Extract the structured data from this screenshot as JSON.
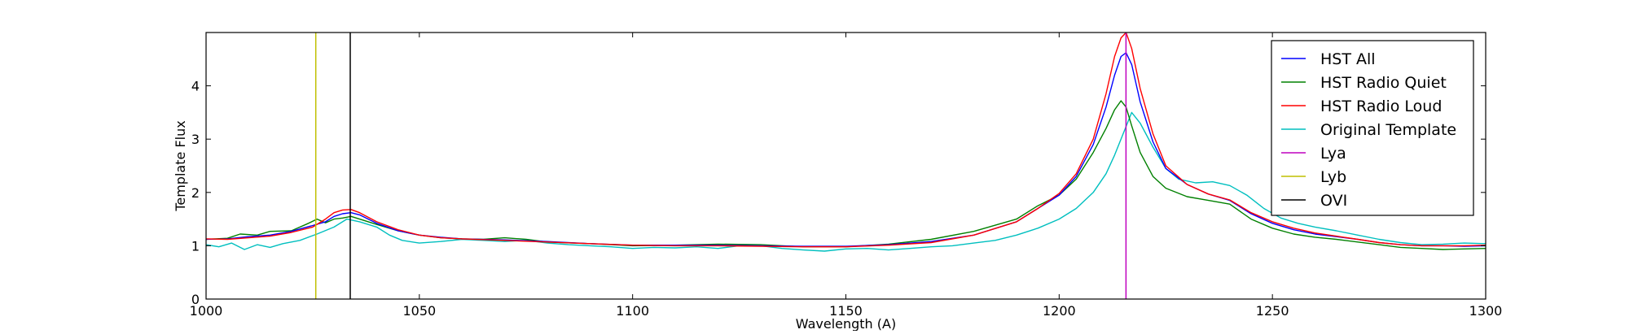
{
  "chart_data": {
    "type": "line",
    "title": "",
    "xlabel": "Wavelength (A)",
    "ylabel": "Template Flux",
    "xlim": [
      1000,
      1300
    ],
    "ylim": [
      0,
      5
    ],
    "xticks": [
      1000,
      1050,
      1100,
      1150,
      1200,
      1250,
      1300
    ],
    "yticks": [
      0,
      1,
      2,
      3,
      4
    ],
    "grid": false,
    "legend_position": "top-right",
    "series": [
      {
        "name": "HST All",
        "color": "#0000ff",
        "points": [
          [
            1000,
            1.12
          ],
          [
            1005,
            1.13
          ],
          [
            1010,
            1.17
          ],
          [
            1015,
            1.2
          ],
          [
            1020,
            1.27
          ],
          [
            1025,
            1.38
          ],
          [
            1028,
            1.45
          ],
          [
            1030,
            1.55
          ],
          [
            1032,
            1.6
          ],
          [
            1034,
            1.62
          ],
          [
            1036,
            1.58
          ],
          [
            1040,
            1.42
          ],
          [
            1045,
            1.28
          ],
          [
            1050,
            1.2
          ],
          [
            1055,
            1.16
          ],
          [
            1060,
            1.13
          ],
          [
            1070,
            1.11
          ],
          [
            1080,
            1.08
          ],
          [
            1090,
            1.04
          ],
          [
            1100,
            1.01
          ],
          [
            1110,
            1.01
          ],
          [
            1120,
            1.01
          ],
          [
            1130,
            1.0
          ],
          [
            1140,
            0.99
          ],
          [
            1150,
            0.99
          ],
          [
            1160,
            1.02
          ],
          [
            1170,
            1.08
          ],
          [
            1180,
            1.2
          ],
          [
            1190,
            1.45
          ],
          [
            1195,
            1.7
          ],
          [
            1200,
            1.95
          ],
          [
            1204,
            2.3
          ],
          [
            1208,
            2.9
          ],
          [
            1211,
            3.6
          ],
          [
            1213,
            4.2
          ],
          [
            1214.5,
            4.55
          ],
          [
            1215.7,
            4.62
          ],
          [
            1217,
            4.4
          ],
          [
            1219,
            3.7
          ],
          [
            1222,
            2.95
          ],
          [
            1225,
            2.45
          ],
          [
            1230,
            2.15
          ],
          [
            1235,
            1.97
          ],
          [
            1240,
            1.85
          ],
          [
            1245,
            1.6
          ],
          [
            1250,
            1.42
          ],
          [
            1255,
            1.3
          ],
          [
            1260,
            1.22
          ],
          [
            1265,
            1.17
          ],
          [
            1270,
            1.12
          ],
          [
            1275,
            1.06
          ],
          [
            1280,
            1.02
          ],
          [
            1285,
            1.0
          ],
          [
            1290,
            1.0
          ],
          [
            1295,
            0.99
          ],
          [
            1300,
            1.0
          ]
        ]
      },
      {
        "name": "HST Radio Quiet",
        "color": "#008000",
        "points": [
          [
            1000,
            1.12
          ],
          [
            1005,
            1.14
          ],
          [
            1008,
            1.22
          ],
          [
            1012,
            1.2
          ],
          [
            1015,
            1.27
          ],
          [
            1020,
            1.28
          ],
          [
            1024,
            1.42
          ],
          [
            1026,
            1.5
          ],
          [
            1028,
            1.43
          ],
          [
            1030,
            1.5
          ],
          [
            1032,
            1.52
          ],
          [
            1034,
            1.55
          ],
          [
            1036,
            1.5
          ],
          [
            1040,
            1.4
          ],
          [
            1045,
            1.28
          ],
          [
            1050,
            1.2
          ],
          [
            1055,
            1.15
          ],
          [
            1060,
            1.13
          ],
          [
            1065,
            1.12
          ],
          [
            1070,
            1.15
          ],
          [
            1075,
            1.12
          ],
          [
            1080,
            1.07
          ],
          [
            1090,
            1.04
          ],
          [
            1100,
            1.0
          ],
          [
            1110,
            1.01
          ],
          [
            1120,
            1.03
          ],
          [
            1130,
            1.02
          ],
          [
            1140,
            0.98
          ],
          [
            1150,
            0.98
          ],
          [
            1160,
            1.03
          ],
          [
            1170,
            1.12
          ],
          [
            1180,
            1.27
          ],
          [
            1190,
            1.5
          ],
          [
            1195,
            1.75
          ],
          [
            1200,
            1.95
          ],
          [
            1204,
            2.25
          ],
          [
            1208,
            2.75
          ],
          [
            1211,
            3.2
          ],
          [
            1213,
            3.55
          ],
          [
            1214.5,
            3.72
          ],
          [
            1215.7,
            3.6
          ],
          [
            1217,
            3.25
          ],
          [
            1219,
            2.75
          ],
          [
            1222,
            2.3
          ],
          [
            1225,
            2.08
          ],
          [
            1230,
            1.92
          ],
          [
            1235,
            1.85
          ],
          [
            1240,
            1.78
          ],
          [
            1245,
            1.5
          ],
          [
            1250,
            1.33
          ],
          [
            1255,
            1.22
          ],
          [
            1260,
            1.16
          ],
          [
            1265,
            1.12
          ],
          [
            1270,
            1.07
          ],
          [
            1275,
            1.02
          ],
          [
            1280,
            0.97
          ],
          [
            1285,
            0.95
          ],
          [
            1290,
            0.93
          ],
          [
            1295,
            0.94
          ],
          [
            1300,
            0.95
          ]
        ]
      },
      {
        "name": "HST Radio Loud",
        "color": "#ff0000",
        "points": [
          [
            1000,
            1.13
          ],
          [
            1005,
            1.12
          ],
          [
            1010,
            1.15
          ],
          [
            1015,
            1.18
          ],
          [
            1020,
            1.25
          ],
          [
            1025,
            1.35
          ],
          [
            1028,
            1.5
          ],
          [
            1030,
            1.62
          ],
          [
            1032,
            1.67
          ],
          [
            1034,
            1.68
          ],
          [
            1036,
            1.62
          ],
          [
            1040,
            1.45
          ],
          [
            1045,
            1.3
          ],
          [
            1050,
            1.2
          ],
          [
            1055,
            1.15
          ],
          [
            1060,
            1.13
          ],
          [
            1070,
            1.1
          ],
          [
            1080,
            1.07
          ],
          [
            1090,
            1.04
          ],
          [
            1100,
            1.01
          ],
          [
            1110,
            1.0
          ],
          [
            1120,
            1.0
          ],
          [
            1130,
            0.99
          ],
          [
            1140,
            0.98
          ],
          [
            1150,
            0.98
          ],
          [
            1160,
            1.01
          ],
          [
            1170,
            1.06
          ],
          [
            1180,
            1.2
          ],
          [
            1190,
            1.45
          ],
          [
            1195,
            1.7
          ],
          [
            1200,
            1.98
          ],
          [
            1204,
            2.35
          ],
          [
            1208,
            3.0
          ],
          [
            1211,
            3.85
          ],
          [
            1213,
            4.55
          ],
          [
            1214.5,
            4.9
          ],
          [
            1215.7,
            5.0
          ],
          [
            1217,
            4.7
          ],
          [
            1219,
            3.95
          ],
          [
            1222,
            3.1
          ],
          [
            1225,
            2.5
          ],
          [
            1230,
            2.15
          ],
          [
            1235,
            1.97
          ],
          [
            1240,
            1.86
          ],
          [
            1245,
            1.62
          ],
          [
            1250,
            1.45
          ],
          [
            1255,
            1.33
          ],
          [
            1260,
            1.24
          ],
          [
            1265,
            1.18
          ],
          [
            1270,
            1.12
          ],
          [
            1275,
            1.06
          ],
          [
            1280,
            1.02
          ],
          [
            1285,
            1.0
          ],
          [
            1290,
            1.0
          ],
          [
            1295,
            1.0
          ],
          [
            1300,
            1.01
          ]
        ]
      },
      {
        "name": "Original Template",
        "color": "#00bfbf",
        "points": [
          [
            1000,
            1.02
          ],
          [
            1003,
            0.98
          ],
          [
            1006,
            1.05
          ],
          [
            1009,
            0.93
          ],
          [
            1012,
            1.02
          ],
          [
            1015,
            0.97
          ],
          [
            1018,
            1.04
          ],
          [
            1022,
            1.1
          ],
          [
            1026,
            1.22
          ],
          [
            1030,
            1.35
          ],
          [
            1033,
            1.5
          ],
          [
            1036,
            1.45
          ],
          [
            1040,
            1.35
          ],
          [
            1043,
            1.2
          ],
          [
            1046,
            1.1
          ],
          [
            1050,
            1.05
          ],
          [
            1055,
            1.08
          ],
          [
            1060,
            1.12
          ],
          [
            1065,
            1.1
          ],
          [
            1070,
            1.08
          ],
          [
            1075,
            1.1
          ],
          [
            1080,
            1.05
          ],
          [
            1085,
            1.02
          ],
          [
            1090,
            1.0
          ],
          [
            1095,
            0.98
          ],
          [
            1100,
            0.95
          ],
          [
            1105,
            0.97
          ],
          [
            1110,
            0.96
          ],
          [
            1115,
            0.98
          ],
          [
            1120,
            0.95
          ],
          [
            1125,
            1.0
          ],
          [
            1130,
            1.0
          ],
          [
            1135,
            0.95
          ],
          [
            1140,
            0.92
          ],
          [
            1145,
            0.9
          ],
          [
            1150,
            0.94
          ],
          [
            1155,
            0.95
          ],
          [
            1160,
            0.92
          ],
          [
            1165,
            0.95
          ],
          [
            1170,
            0.98
          ],
          [
            1175,
            1.0
          ],
          [
            1180,
            1.05
          ],
          [
            1185,
            1.1
          ],
          [
            1190,
            1.2
          ],
          [
            1195,
            1.33
          ],
          [
            1200,
            1.5
          ],
          [
            1204,
            1.7
          ],
          [
            1208,
            2.0
          ],
          [
            1211,
            2.35
          ],
          [
            1213,
            2.7
          ],
          [
            1215,
            3.1
          ],
          [
            1217,
            3.5
          ],
          [
            1219,
            3.3
          ],
          [
            1222,
            2.85
          ],
          [
            1225,
            2.45
          ],
          [
            1228,
            2.25
          ],
          [
            1232,
            2.18
          ],
          [
            1236,
            2.2
          ],
          [
            1240,
            2.13
          ],
          [
            1244,
            1.95
          ],
          [
            1248,
            1.7
          ],
          [
            1252,
            1.52
          ],
          [
            1256,
            1.42
          ],
          [
            1260,
            1.35
          ],
          [
            1265,
            1.28
          ],
          [
            1270,
            1.2
          ],
          [
            1275,
            1.12
          ],
          [
            1280,
            1.06
          ],
          [
            1285,
            1.02
          ],
          [
            1290,
            1.03
          ],
          [
            1295,
            1.05
          ],
          [
            1300,
            1.04
          ]
        ]
      }
    ],
    "vlines": [
      {
        "name": "Lya",
        "x": 1215.67,
        "color": "#bf00bf"
      },
      {
        "name": "Lyb",
        "x": 1025.72,
        "color": "#bfbf00"
      },
      {
        "name": "OVI",
        "x": 1033.8,
        "color": "#000000"
      }
    ],
    "legend": [
      {
        "label": "HST All",
        "color": "#0000ff"
      },
      {
        "label": "HST Radio Quiet",
        "color": "#008000"
      },
      {
        "label": "HST Radio Loud",
        "color": "#ff0000"
      },
      {
        "label": "Original Template",
        "color": "#00bfbf"
      },
      {
        "label": "Lya",
        "color": "#bf00bf"
      },
      {
        "label": "Lyb",
        "color": "#bfbf00"
      },
      {
        "label": "OVI",
        "color": "#000000"
      }
    ]
  }
}
